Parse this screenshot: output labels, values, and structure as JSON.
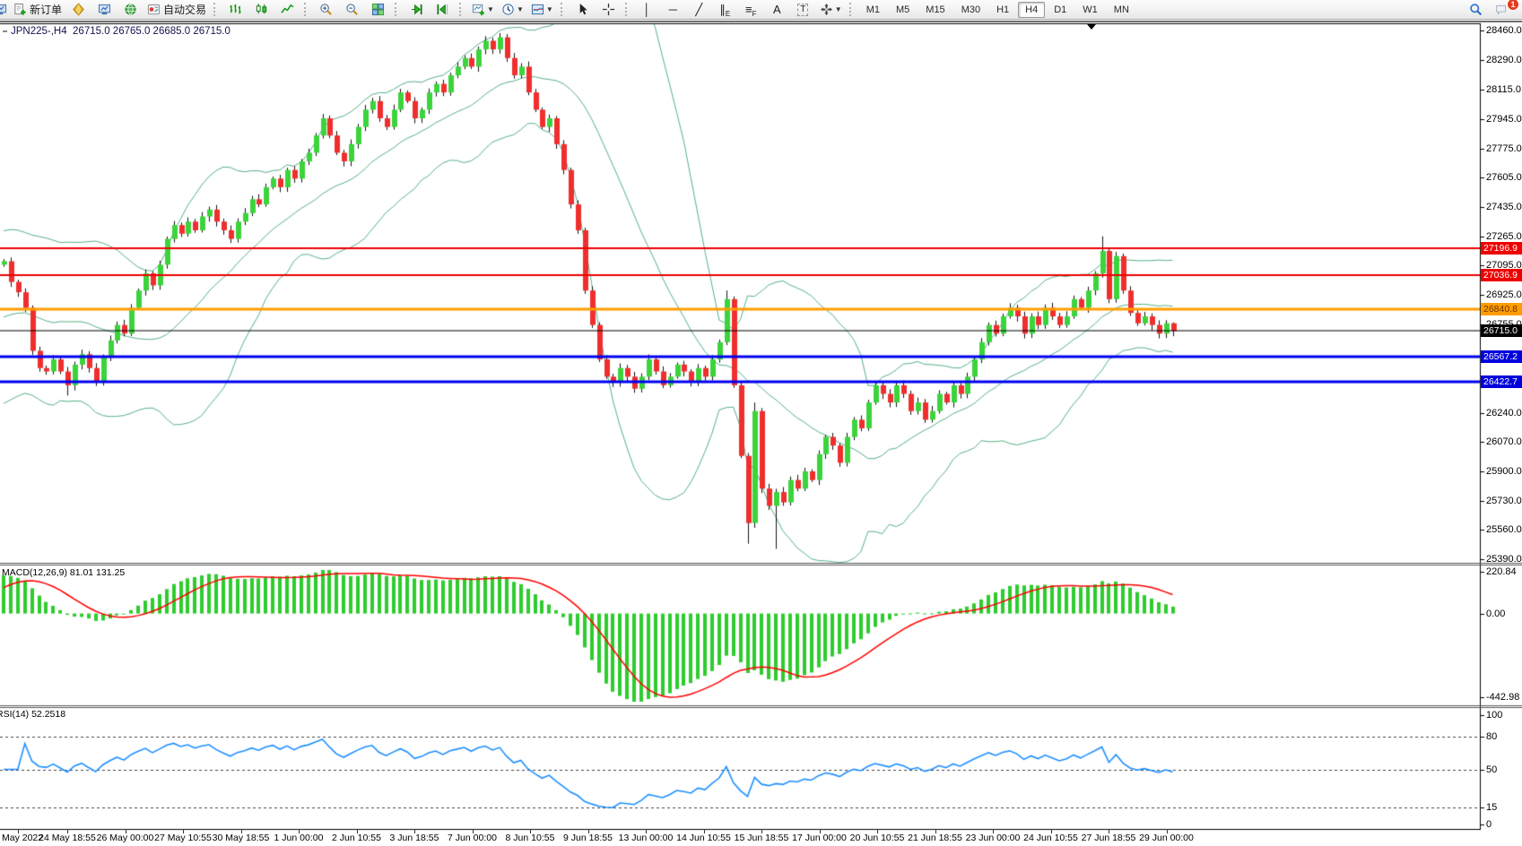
{
  "window": {
    "title_symbol": "JPN225-,H4",
    "title_ohlc": "26715.0 26765.0 26685.0 26715.0"
  },
  "toolbar": {
    "groups": [
      {
        "name": "trade",
        "buttons": [
          {
            "name": "new-order-button",
            "icon": "doc-plus",
            "label": "新订单"
          },
          {
            "name": "metaeditor-button",
            "icon": "gold-gem"
          },
          {
            "name": "data-window-button",
            "icon": "blue-monitor"
          },
          {
            "name": "signals-button",
            "icon": "green-globe"
          },
          {
            "name": "autotrading-button",
            "icon": "autotrade",
            "label": "自动交易"
          }
        ]
      },
      {
        "name": "chart-type",
        "buttons": [
          {
            "name": "bar-chart-button",
            "icon": "ohlc-bars"
          },
          {
            "name": "candlestick-button",
            "icon": "candles"
          },
          {
            "name": "line-chart-button",
            "icon": "line-chart"
          }
        ]
      },
      {
        "name": "zoom",
        "buttons": [
          {
            "name": "zoom-in-button",
            "icon": "zoom-in"
          },
          {
            "name": "zoom-out-button",
            "icon": "zoom-out"
          },
          {
            "name": "tile-windows-button",
            "icon": "tiles"
          }
        ]
      },
      {
        "name": "scroll",
        "buttons": [
          {
            "name": "auto-scroll-button",
            "icon": "auto-scroll"
          },
          {
            "name": "chart-shift-button",
            "icon": "chart-shift"
          }
        ]
      },
      {
        "name": "new-objects",
        "buttons": [
          {
            "name": "new-chart-button",
            "icon": "chart-plus",
            "dropdown": true
          },
          {
            "name": "period-button",
            "icon": "clock",
            "dropdown": true
          },
          {
            "name": "template-button",
            "icon": "template",
            "dropdown": true
          }
        ]
      },
      {
        "name": "cursor",
        "buttons": [
          {
            "name": "cursor-button",
            "icon": "cursor"
          },
          {
            "name": "crosshair-button",
            "icon": "crosshair"
          }
        ]
      },
      {
        "name": "objects",
        "buttons": [
          {
            "name": "vertical-line-button",
            "glyph": "│"
          },
          {
            "name": "horizontal-line-button",
            "glyph": "─"
          },
          {
            "name": "trendline-button",
            "glyph": "╱"
          },
          {
            "name": "channel-button",
            "glyph": "∥",
            "sub": "E"
          },
          {
            "name": "fibonacci-button",
            "glyph": "≡",
            "sub": "F"
          },
          {
            "name": "text-button",
            "glyph": "A"
          },
          {
            "name": "text-label-button",
            "glyph": "T",
            "boxed": true
          },
          {
            "name": "arrows-button",
            "icon": "arrows",
            "dropdown": true
          }
        ]
      },
      {
        "name": "timeframes",
        "buttons": [
          {
            "name": "timeframe-m1-button",
            "label": "M1"
          },
          {
            "name": "timeframe-m5-button",
            "label": "M5"
          },
          {
            "name": "timeframe-m15-button",
            "label": "M15"
          },
          {
            "name": "timeframe-m30-button",
            "label": "M30"
          },
          {
            "name": "timeframe-h1-button",
            "label": "H1"
          },
          {
            "name": "timeframe-h4-button",
            "label": "H4",
            "active": true
          },
          {
            "name": "timeframe-d1-button",
            "label": "D1"
          },
          {
            "name": "timeframe-w1-button",
            "label": "W1"
          },
          {
            "name": "timeframe-mn-button",
            "label": "MN"
          }
        ]
      }
    ],
    "right_buttons": [
      {
        "name": "search-button",
        "icon": "search"
      },
      {
        "name": "notifications-button",
        "icon": "chat",
        "badge": "1"
      }
    ]
  },
  "chart_data": {
    "type": "candlestick",
    "symbol": "JPN225-",
    "timeframe": "H4",
    "title_ohlc": {
      "open": 26715.0,
      "high": 26765.0,
      "low": 26685.0,
      "close": 26715.0
    },
    "y_range": [
      25390,
      28460
    ],
    "price_axis_ticks": [
      "28460.0",
      "28290.0",
      "28115.0",
      "27945.0",
      "27775.0",
      "27605.0",
      "27435.0",
      "27265.0",
      "27095.0",
      "26925.0",
      "26755.0",
      "26240.0",
      "26070.0",
      "25900.0",
      "25730.0",
      "25560.0",
      "25390.0"
    ],
    "time_axis_labels": [
      "May 2022",
      "24 May 18:55",
      "26 May 00:00",
      "27 May 10:55",
      "30 May 18:55",
      "1 Jun 00:00",
      "2 Jun 10:55",
      "3 Jun 18:55",
      "7 Jun 00:00",
      "8 Jun 10:55",
      "9 Jun 18:55",
      "13 Jun 00:00",
      "14 Jun 10:55",
      "15 Jun 18:55",
      "17 Jun 00:00",
      "20 Jun 10:55",
      "21 Jun 18:55",
      "23 Jun 00:00",
      "24 Jun 10:55",
      "27 Jun 18:55",
      "29 Jun 00:00"
    ],
    "horizontal_lines": [
      {
        "price": 27196.9,
        "label": "27196.9",
        "color": "#ee0000",
        "width": 2,
        "badge_bg": "#ee0000",
        "badge_text": "#ffffff"
      },
      {
        "price": 27036.9,
        "label": "27036.9",
        "color": "#ee0000",
        "width": 2,
        "badge_bg": "#ee0000",
        "badge_text": "#ffffff"
      },
      {
        "price": 26840.8,
        "label": "26840.8",
        "color": "#ff9d00",
        "width": 3,
        "badge_bg": "#ff9d00",
        "badge_text": "#6b3400"
      },
      {
        "price": 26715.0,
        "label": "26715.0",
        "color": "#000000",
        "width": 1,
        "badge_bg": "#000000",
        "badge_text": "#ffffff"
      },
      {
        "price": 26567.2,
        "label": "26567.2",
        "color": "#0000ee",
        "width": 3,
        "badge_bg": "#0000dd",
        "badge_text": "#ffffff"
      },
      {
        "price": 26422.7,
        "label": "26422.7",
        "color": "#0000ee",
        "width": 3,
        "badge_bg": "#0000dd",
        "badge_text": "#ffffff"
      }
    ],
    "candles": {
      "colors": {
        "up": "#3bd43b",
        "down": "#f02e2e",
        "wick": "#151515"
      },
      "default_wick": 18,
      "pre_visible_closes": [
        26350,
        26420,
        26500,
        26600,
        26700,
        26800,
        26850,
        26900,
        26950,
        27000,
        27050,
        27100
      ],
      "closes": [
        27120,
        27000,
        26940,
        26850,
        26600,
        26500,
        26480,
        26550,
        26480,
        26400,
        26520,
        26580,
        26500,
        26420,
        26560,
        26660,
        26750,
        26700,
        26850,
        26950,
        27050,
        26980,
        27100,
        27250,
        27330,
        27280,
        27350,
        27300,
        27380,
        27420,
        27350,
        27300,
        27250,
        27350,
        27400,
        27480,
        27450,
        27550,
        27600,
        27550,
        27650,
        27600,
        27700,
        27750,
        27850,
        27950,
        27850,
        27750,
        27700,
        27800,
        27900,
        28000,
        28050,
        27950,
        27900,
        28000,
        28100,
        28050,
        27950,
        28000,
        28100,
        28150,
        28100,
        28200,
        28250,
        28300,
        28250,
        28350,
        28400,
        28350,
        28420,
        28300,
        28200,
        28250,
        28100,
        28000,
        27900,
        27950,
        27800,
        27650,
        27450,
        27300,
        26950,
        26750,
        26550,
        26450,
        26420,
        26500,
        26450,
        26380,
        26450,
        26550,
        26480,
        26400,
        26450,
        26520,
        26480,
        26420,
        26500,
        26450,
        26550,
        26650,
        26900,
        26400,
        25990,
        25600,
        26250,
        25800,
        25700,
        25780,
        25720,
        25850,
        25800,
        25900,
        25850,
        26000,
        26100,
        26050,
        25950,
        26100,
        26200,
        26150,
        26300,
        26400,
        26350,
        26300,
        26400,
        26350,
        26250,
        26300,
        26200,
        26250,
        26350,
        26300,
        26400,
        26350,
        26450,
        26550,
        26650,
        26750,
        26700,
        26800,
        26850,
        26800,
        26700,
        26800,
        26750,
        26850,
        26800,
        26750,
        26800,
        26900,
        26850,
        26950,
        27050,
        27180,
        26900,
        27150,
        26950,
        26820,
        26760,
        26800,
        26750,
        26700,
        26760,
        26715
      ],
      "wick_overrides": {
        "9": [
          null,
          26340
        ],
        "70": [
          28445,
          null
        ],
        "102": [
          26950,
          null
        ],
        "105": [
          null,
          25480
        ],
        "106": [
          26300,
          null
        ],
        "109": [
          null,
          25450
        ],
        "155": [
          27265,
          null
        ],
        "165": [
          26765,
          26685
        ]
      }
    },
    "bollinger": {
      "period": 20,
      "deviation": 2,
      "color": "#56b287"
    },
    "macd": {
      "label": "MACD(12,26,9) 81.01 131.25",
      "fast": 12,
      "slow": 26,
      "signal": 9,
      "current_main": 81.01,
      "current_signal": 131.25,
      "axis_labels": [
        "220.84",
        "0.00",
        "-442.98"
      ],
      "axis_max": 220.84,
      "axis_min": -442.98,
      "histogram_color": "#2ecc2e",
      "signal_color": "#ff0000"
    },
    "rsi": {
      "label": "RSI(14) 52.2518",
      "period": 14,
      "current": 52.2518,
      "axis_labels": [
        "100",
        "80",
        "50",
        "15",
        "0"
      ],
      "axis_values": [
        100,
        80,
        50,
        15,
        0
      ],
      "levels": [
        80,
        50,
        15
      ],
      "color": "#1e90ff"
    }
  }
}
